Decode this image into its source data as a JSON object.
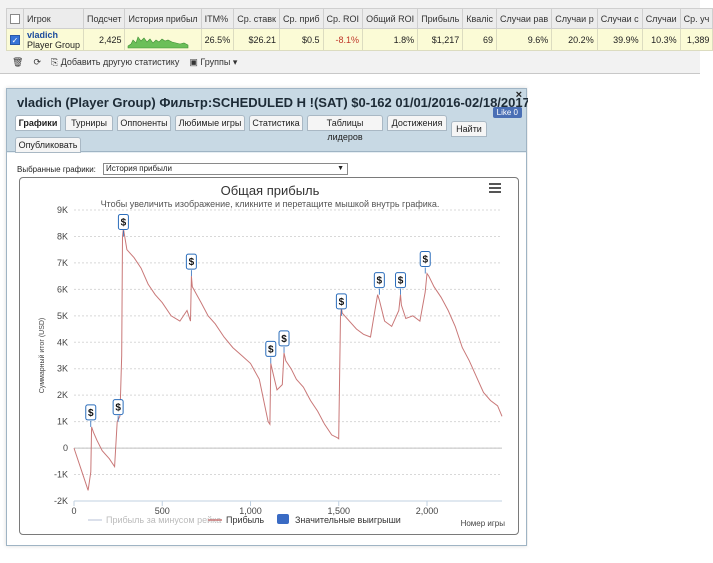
{
  "stats_table": {
    "headers": [
      "",
      "Игрок",
      "Подсчет",
      "История прибыл",
      "ITM%",
      "Ср. ставк",
      "Ср. приб",
      "Ср. ROI",
      "Общий ROI",
      "Прибыль",
      "Кваліс",
      "Случаи рав",
      "Случаи р",
      "Случаи с",
      "Случаи",
      "Ср. уч"
    ],
    "row": {
      "checked": true,
      "player_name": "vladich",
      "player_group": "Player Group",
      "count": "2,425",
      "itm": "26.5%",
      "avg_stake": "$26.21",
      "avg_profit": "$0.5",
      "avg_roi": "-8.1%",
      "total_roi": "1.8%",
      "profit": "$1,217",
      "qual": "69",
      "c1": "9.6%",
      "c2": "20.2%",
      "c3": "39.9%",
      "c4": "10.3%",
      "c5": "1,389"
    },
    "footer": {
      "add_stat": "Добавить другую статистику",
      "groups": "Группы"
    }
  },
  "report": {
    "title": "vladich (Player Group) Фильтр:SCHEDULED H !(SAT) $0-162 01/01/2016-02/18/2017",
    "close": "×",
    "like": "Like 0",
    "tabs": [
      "Графики",
      "Турниры",
      "Оппоненты",
      "Любимые игры",
      "Статистика",
      "Таблицы лидеров",
      "Достижения",
      "Найти",
      "Опубликовать"
    ],
    "chart_select_label": "Выбранные графики:",
    "chart_select_value": "История прибыли"
  },
  "colors": {
    "profit_line": "#c97878",
    "rake_line": "#cfd6e4",
    "big_win": "#3a6bc4",
    "marker_border": "#2b6dbb"
  },
  "chart_data": {
    "type": "line",
    "title": "Общая прибыль",
    "subtitle": "Чтобы увеличить изображение, кликните и перетащите мышкой внутрь графика.",
    "xlabel": "Номер игры",
    "ylabel": "Суммарный итог (USD)",
    "xlim": [
      0,
      2425
    ],
    "ylim": [
      -2000,
      9000
    ],
    "x_ticks": [
      "0",
      "500",
      "1,000",
      "1,500",
      "2,000"
    ],
    "y_ticks": [
      "-2K",
      "-1K",
      "0",
      "1K",
      "2K",
      "3K",
      "4K",
      "5K",
      "6K",
      "7K",
      "8K",
      "9K"
    ],
    "legend": [
      "Прибыль за минусом рейка",
      "Прибыль",
      "Значительные выигрыши"
    ],
    "series": [
      {
        "name": "Прибыль",
        "x": [
          0,
          40,
          60,
          80,
          95,
          100,
          110,
          130,
          160,
          200,
          230,
          245,
          260,
          270,
          275,
          280,
          300,
          340,
          380,
          420,
          460,
          500,
          550,
          600,
          640,
          660,
          665,
          670,
          720,
          760,
          800,
          850,
          900,
          950,
          1000,
          1050,
          1100,
          1110,
          1115,
          1125,
          1150,
          1180,
          1190,
          1200,
          1230,
          1260,
          1300,
          1340,
          1380,
          1420,
          1460,
          1490,
          1500,
          1510,
          1515,
          1520,
          1560,
          1600,
          1640,
          1680,
          1700,
          1720,
          1730,
          1760,
          1800,
          1840,
          1850,
          1855,
          1880,
          1920,
          1960,
          1990,
          2000,
          2010,
          2040,
          2080,
          2120,
          2160,
          2200,
          2240,
          2280,
          2320,
          2360,
          2400,
          2425
        ],
        "y": [
          0,
          -800,
          -1200,
          -1600,
          -900,
          800,
          600,
          300,
          -100,
          -400,
          -700,
          1000,
          1200,
          3500,
          8000,
          8300,
          7500,
          7200,
          6800,
          6200,
          5800,
          5500,
          5000,
          4800,
          5200,
          4800,
          6500,
          6100,
          5500,
          5000,
          4700,
          4200,
          3800,
          3500,
          3200,
          2600,
          1000,
          900,
          3200,
          2900,
          2200,
          2400,
          3600,
          3300,
          3000,
          2600,
          2300,
          1800,
          1400,
          900,
          500,
          400,
          350,
          5000,
          5300,
          5100,
          4800,
          4500,
          4300,
          4200,
          5000,
          5800,
          5600,
          4800,
          4600,
          5200,
          5800,
          5400,
          4900,
          5000,
          4800,
          5900,
          6600,
          6500,
          6100,
          5700,
          5200,
          4600,
          3800,
          3300,
          2700,
          2100,
          1800,
          1600,
          1200
        ]
      },
      {
        "name": "Значительные выигрыши",
        "x": [
          95,
          250,
          280,
          665,
          1115,
          1190,
          1515,
          1730,
          1850,
          1990
        ],
        "y": [
          800,
          1000,
          8000,
          6500,
          3200,
          3600,
          5000,
          5800,
          5800,
          6600
        ]
      }
    ]
  }
}
